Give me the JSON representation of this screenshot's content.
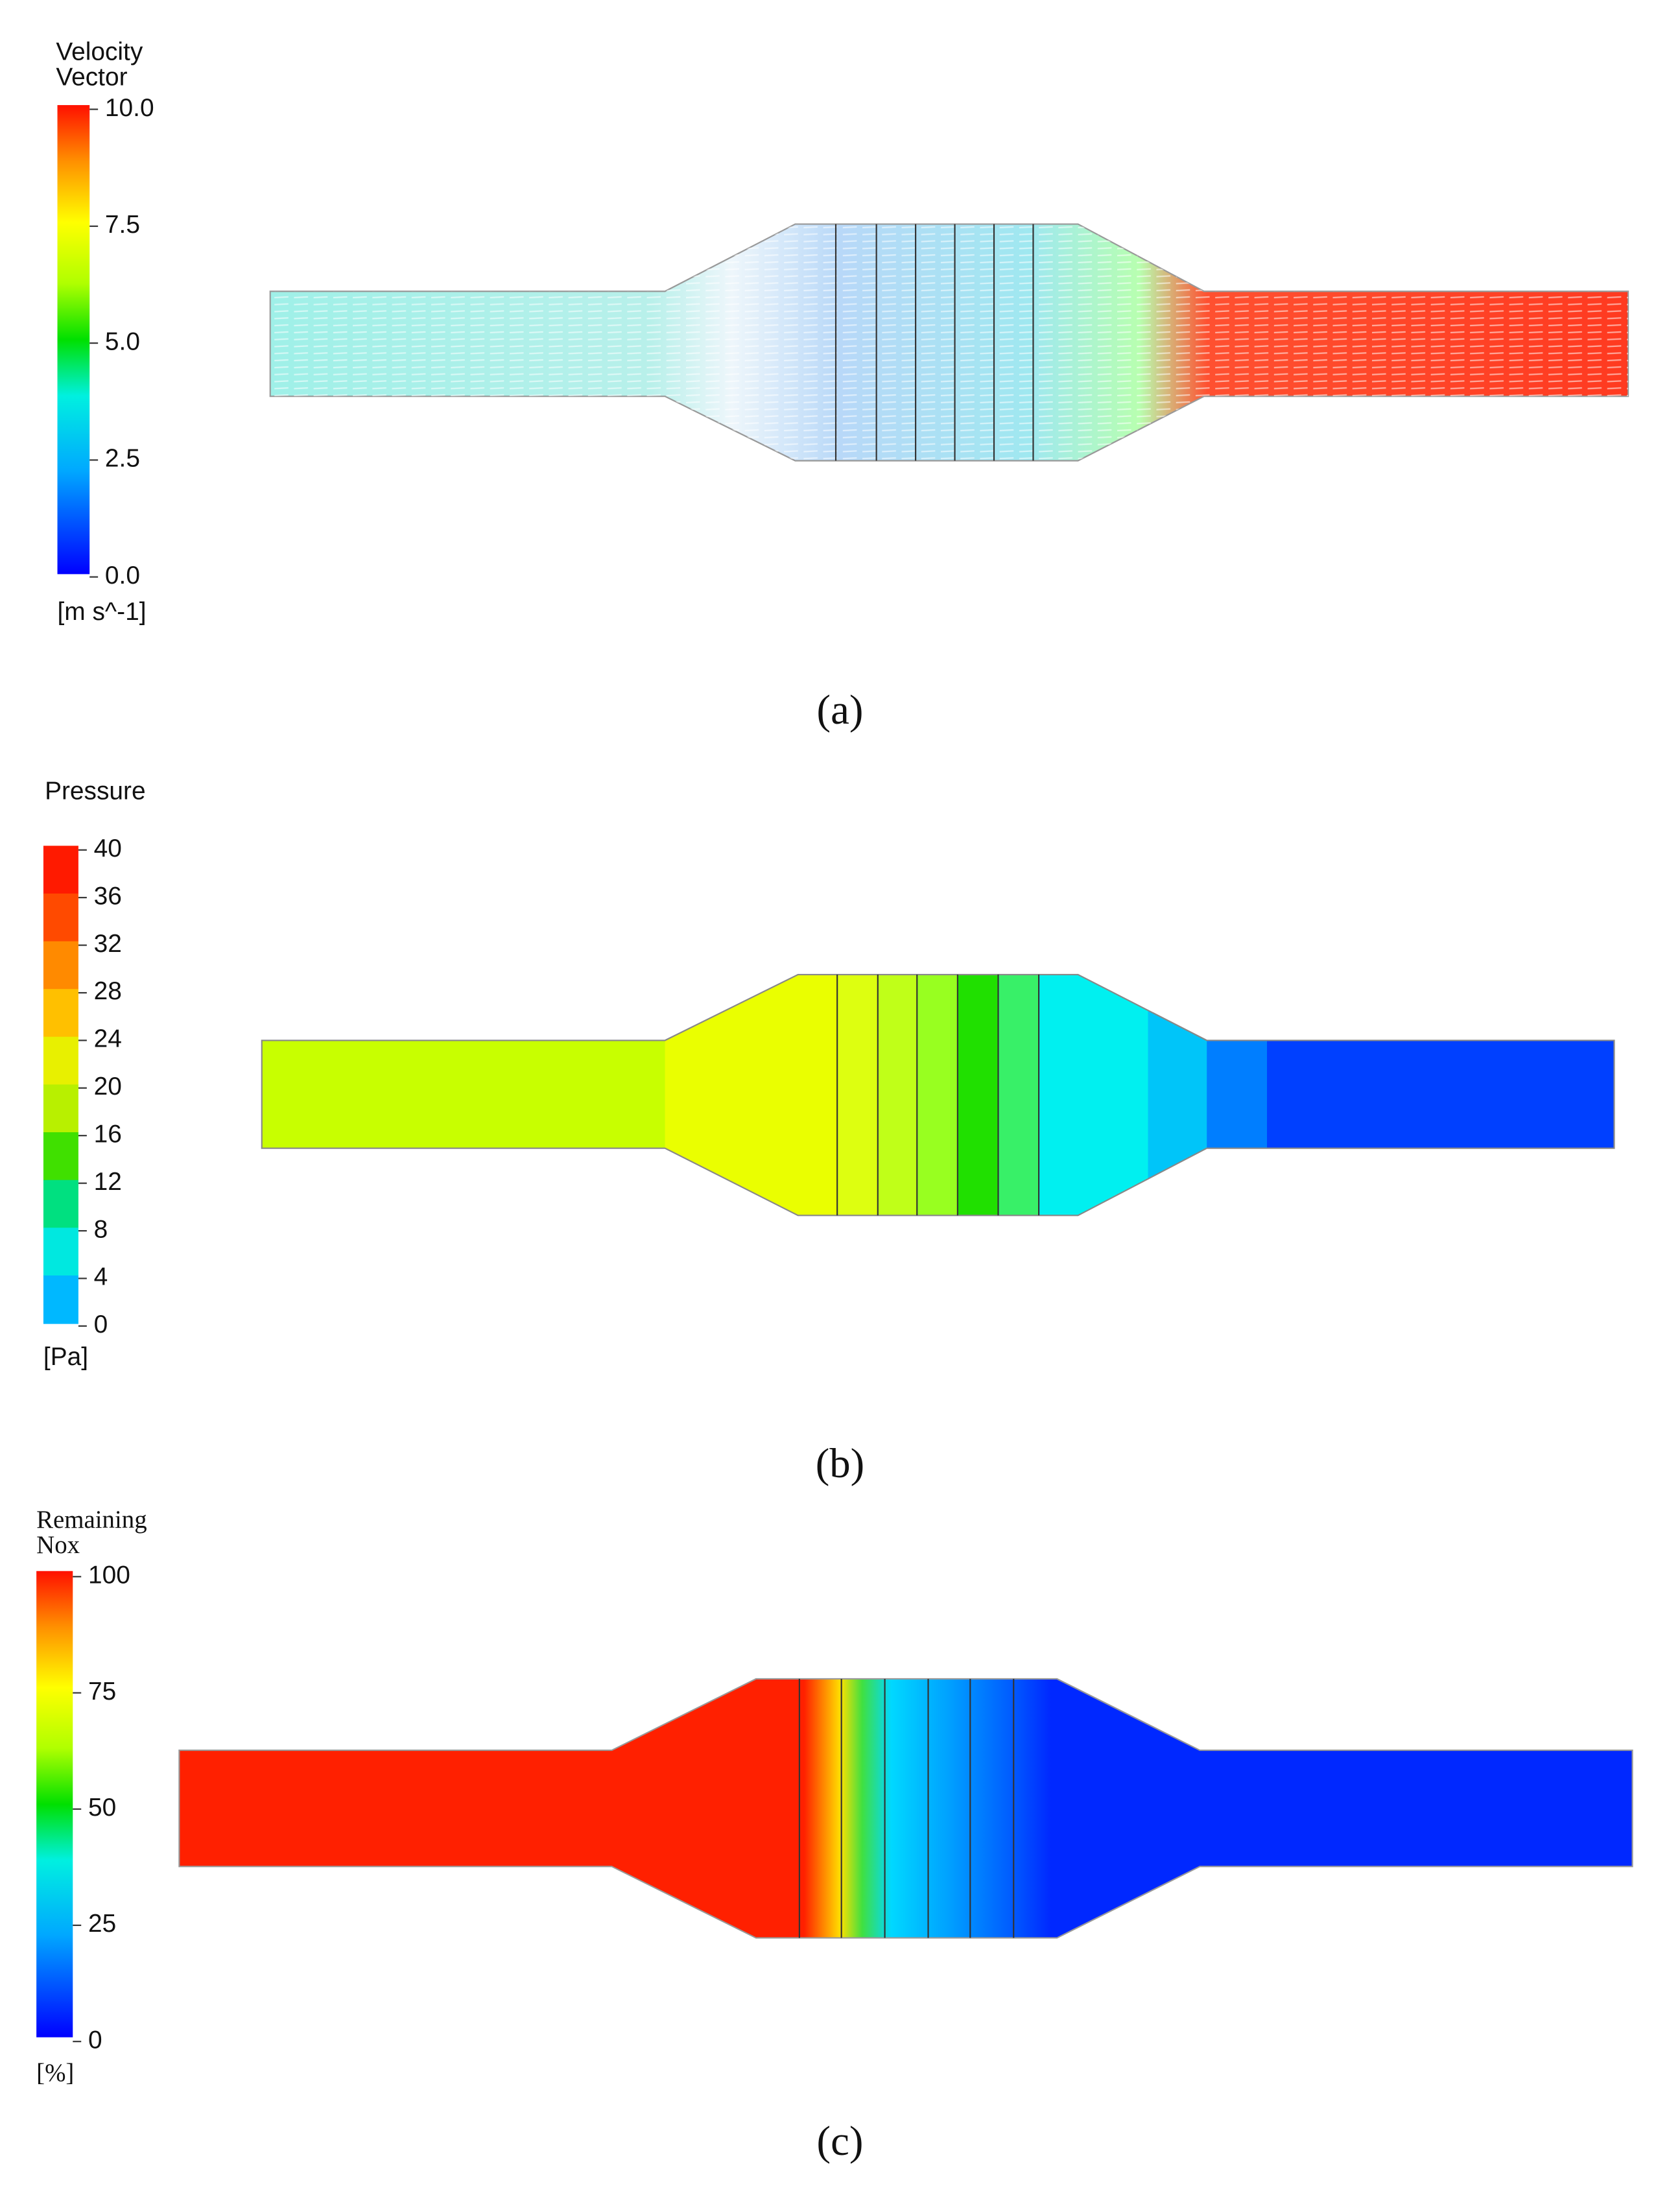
{
  "panels": [
    {
      "legend_title": [
        "Velocity",
        "Vector"
      ],
      "ticks": [
        "10.0",
        "7.5",
        "5.0",
        "2.5",
        "0.0"
      ],
      "unit": "[m s^-1]",
      "caption": "(a)"
    },
    {
      "legend_title": [
        "Pressure"
      ],
      "ticks": [
        "40",
        "36",
        "32",
        "28",
        "24",
        "20",
        "16",
        "12",
        "8",
        "4",
        "0"
      ],
      "unit": "[Pa]",
      "caption": "(b)"
    },
    {
      "legend_title": [
        "Remaining",
        "Nox"
      ],
      "ticks": [
        "100",
        "75",
        "50",
        "25",
        "0"
      ],
      "unit": "[%]",
      "caption": "(c)"
    }
  ]
}
